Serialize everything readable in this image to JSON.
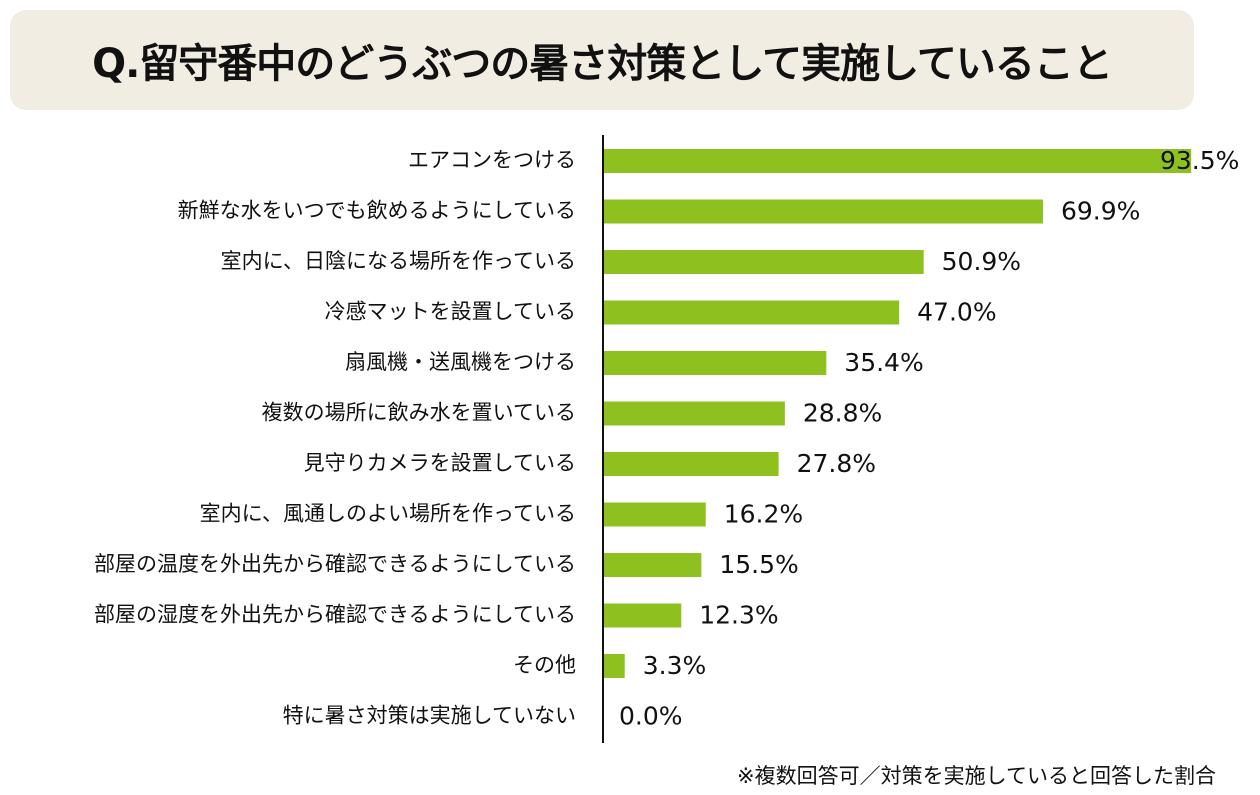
{
  "chart_data": {
    "type": "bar",
    "orientation": "horizontal",
    "title": "Q.留守番中のどうぶつの暑さ対策として実施していること",
    "categories": [
      "エアコンをつける",
      "新鮮な水をいつでも飲めるようにしている",
      "室内に、日陰になる場所を作っている",
      "冷感マットを設置している",
      "扇風機・送風機をつける",
      "複数の場所に飲み水を置いている",
      "見守りカメラを設置している",
      "室内に、風通しのよい場所を作っている",
      "部屋の温度を外出先から確認できるようにしている",
      "部屋の湿度を外出先から確認できるようにしている",
      "その他",
      "特に暑さ対策は実施していない"
    ],
    "values": [
      93.5,
      69.9,
      50.9,
      47.0,
      35.4,
      28.8,
      27.8,
      16.2,
      15.5,
      12.3,
      3.3,
      0.0
    ],
    "value_labels": [
      "93.5%",
      "69.9%",
      "50.9%",
      "47.0%",
      "35.4%",
      "28.8%",
      "27.8%",
      "16.2%",
      "15.5%",
      "12.3%",
      "3.3%",
      "0.0%"
    ],
    "xlim": [
      0,
      100
    ],
    "xlabel": "",
    "ylabel": "",
    "grid": false,
    "bar_color": "#8ec020",
    "note": "※複数回答可／対策を実施していると回答した割合"
  },
  "colors": {
    "title_background": "#f1ede3",
    "text": "#111111",
    "axis": "#111111",
    "bar": "#8ec020"
  }
}
